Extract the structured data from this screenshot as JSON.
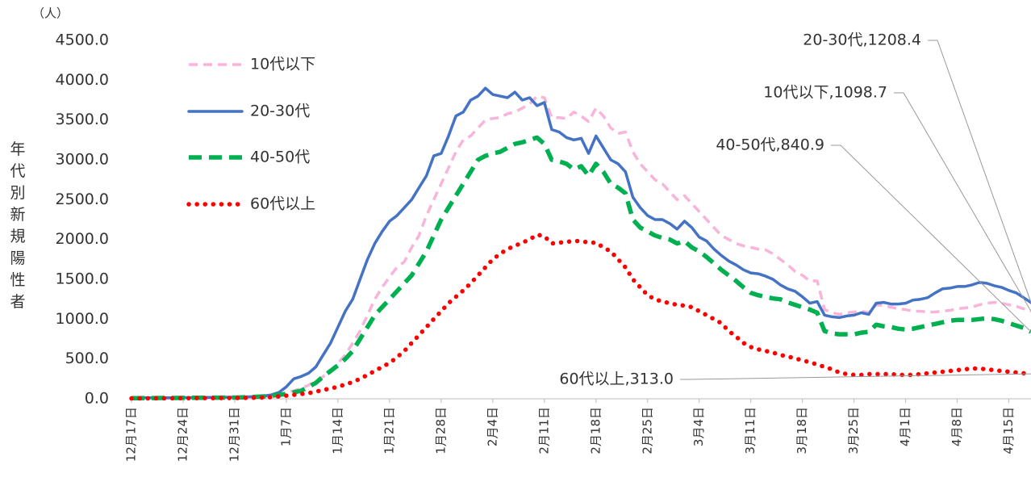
{
  "chart_data": {
    "type": "line",
    "y_unit": "（人）",
    "y_label": "年代別新規陽性者",
    "categories": [
      "12月17日",
      null,
      null,
      null,
      null,
      null,
      null,
      "12月24日",
      null,
      null,
      null,
      null,
      null,
      null,
      "12月31日",
      null,
      null,
      null,
      null,
      null,
      null,
      "1月7日",
      null,
      null,
      null,
      null,
      null,
      null,
      "1月14日",
      null,
      null,
      null,
      null,
      null,
      null,
      "1月21日",
      null,
      null,
      null,
      null,
      null,
      null,
      "1月28日",
      null,
      null,
      null,
      null,
      null,
      null,
      "2月4日",
      null,
      null,
      null,
      null,
      null,
      null,
      "2月11日",
      null,
      null,
      null,
      null,
      null,
      null,
      "2月18日",
      null,
      null,
      null,
      null,
      null,
      null,
      "2月25日",
      null,
      null,
      null,
      null,
      null,
      null,
      "3月4日",
      null,
      null,
      null,
      null,
      null,
      null,
      "3月11日",
      null,
      null,
      null,
      null,
      null,
      null,
      "3月18日",
      null,
      null,
      null,
      null,
      null,
      null,
      "3月25日",
      null,
      null,
      null,
      null,
      null,
      null,
      "4月1日",
      null,
      null,
      null,
      null,
      null,
      null,
      "4月8日",
      null,
      null,
      null,
      null,
      null,
      null,
      "4月15日",
      null,
      null,
      null
    ],
    "series": [
      {
        "name": "10代以下",
        "color": "#f8b4d9",
        "values": [
          5,
          5,
          6,
          6,
          7,
          7,
          8,
          8,
          9,
          9,
          10,
          10,
          10,
          12,
          12,
          14,
          16,
          20,
          25,
          35,
          50,
          80,
          100,
          130,
          170,
          220,
          280,
          350,
          450,
          550,
          700,
          850,
          1050,
          1250,
          1400,
          1530,
          1650,
          1720,
          1900,
          2050,
          2300,
          2500,
          2700,
          2900,
          3100,
          3250,
          3300,
          3400,
          3500,
          3520,
          3530,
          3580,
          3600,
          3650,
          3700,
          3800,
          3780,
          3530,
          3530,
          3520,
          3600,
          3550,
          3480,
          3650,
          3550,
          3400,
          3330,
          3350,
          3100,
          2950,
          2850,
          2750,
          2700,
          2600,
          2500,
          2550,
          2450,
          2350,
          2250,
          2150,
          2050,
          2000,
          1950,
          1920,
          1900,
          1880,
          1870,
          1820,
          1750,
          1680,
          1600,
          1550,
          1480,
          1480,
          1120,
          1080,
          1060,
          1080,
          1090,
          1100,
          1080,
          1180,
          1170,
          1150,
          1130,
          1120,
          1100,
          1100,
          1090,
          1090,
          1100,
          1110,
          1130,
          1140,
          1150,
          1180,
          1200,
          1210,
          1200,
          1180,
          1160,
          1130,
          1098.7
        ]
      },
      {
        "name": "20-30代",
        "color": "#4472c4",
        "values": [
          10,
          10,
          12,
          12,
          12,
          13,
          14,
          15,
          15,
          16,
          17,
          18,
          18,
          20,
          20,
          22,
          25,
          28,
          35,
          50,
          80,
          150,
          250,
          280,
          320,
          400,
          550,
          700,
          900,
          1100,
          1250,
          1500,
          1750,
          1950,
          2100,
          2230,
          2300,
          2400,
          2500,
          2650,
          2800,
          3050,
          3080,
          3300,
          3550,
          3600,
          3750,
          3800,
          3900,
          3820,
          3800,
          3780,
          3850,
          3750,
          3780,
          3680,
          3720,
          3380,
          3350,
          3280,
          3250,
          3270,
          3080,
          3300,
          3150,
          3000,
          2950,
          2850,
          2530,
          2400,
          2300,
          2250,
          2250,
          2200,
          2130,
          2230,
          2150,
          2030,
          1980,
          1880,
          1800,
          1730,
          1680,
          1620,
          1580,
          1570,
          1540,
          1500,
          1430,
          1380,
          1350,
          1280,
          1200,
          1220,
          1050,
          1030,
          1020,
          1040,
          1050,
          1080,
          1060,
          1200,
          1210,
          1190,
          1190,
          1200,
          1240,
          1250,
          1270,
          1330,
          1380,
          1390,
          1410,
          1410,
          1430,
          1460,
          1450,
          1420,
          1400,
          1360,
          1330,
          1270,
          1208.4
        ]
      },
      {
        "name": "40-50代",
        "color": "#00b050",
        "values": [
          8,
          8,
          9,
          9,
          10,
          10,
          10,
          11,
          12,
          12,
          13,
          14,
          14,
          15,
          15,
          17,
          20,
          25,
          30,
          40,
          50,
          60,
          80,
          100,
          150,
          200,
          280,
          350,
          420,
          500,
          600,
          750,
          900,
          1050,
          1150,
          1250,
          1350,
          1450,
          1550,
          1700,
          1850,
          2050,
          2250,
          2400,
          2550,
          2700,
          2850,
          3000,
          3050,
          3080,
          3100,
          3150,
          3200,
          3220,
          3250,
          3280,
          3200,
          3000,
          2980,
          2950,
          2880,
          2920,
          2800,
          2950,
          2850,
          2700,
          2650,
          2580,
          2250,
          2150,
          2100,
          2050,
          2020,
          2000,
          1950,
          1980,
          1900,
          1850,
          1780,
          1700,
          1620,
          1550,
          1480,
          1400,
          1330,
          1300,
          1280,
          1260,
          1250,
          1210,
          1180,
          1150,
          1120,
          1080,
          850,
          820,
          810,
          810,
          810,
          830,
          840,
          930,
          910,
          900,
          880,
          870,
          880,
          900,
          920,
          940,
          960,
          980,
          990,
          990,
          990,
          1000,
          1010,
          1000,
          980,
          950,
          920,
          890,
          840.9
        ]
      },
      {
        "name": "60代以上",
        "color": "#ff0000",
        "values": [
          5,
          5,
          5,
          6,
          6,
          6,
          7,
          7,
          7,
          8,
          8,
          8,
          9,
          9,
          10,
          10,
          12,
          14,
          16,
          20,
          30,
          40,
          50,
          60,
          70,
          90,
          110,
          130,
          150,
          180,
          210,
          250,
          300,
          350,
          400,
          450,
          520,
          600,
          700,
          800,
          900,
          1000,
          1100,
          1200,
          1280,
          1360,
          1450,
          1550,
          1650,
          1750,
          1820,
          1880,
          1920,
          1960,
          2000,
          2060,
          2040,
          1950,
          1960,
          1970,
          1980,
          1980,
          1960,
          1960,
          1900,
          1850,
          1750,
          1650,
          1500,
          1400,
          1300,
          1250,
          1220,
          1200,
          1180,
          1170,
          1150,
          1100,
          1050,
          1000,
          950,
          850,
          780,
          700,
          650,
          620,
          600,
          580,
          550,
          530,
          510,
          480,
          460,
          430,
          400,
          370,
          330,
          310,
          300,
          300,
          310,
          310,
          310,
          310,
          300,
          300,
          300,
          310,
          320,
          330,
          340,
          350,
          360,
          370,
          380,
          380,
          370,
          360,
          350,
          340,
          330,
          320,
          313
        ]
      }
    ],
    "annotations": [
      "10代以下,1098.7",
      "20-30代,1208.4",
      "40-50代,840.9",
      "60代以上,313.0"
    ],
    "ylim": [
      0,
      4500
    ],
    "yticks": [
      {
        "value": 0,
        "label": "0.0"
      },
      {
        "value": 500,
        "label": "500.0"
      },
      {
        "value": 1000,
        "label": "1000.0"
      },
      {
        "value": 1500,
        "label": "1500.0"
      },
      {
        "value": 2000,
        "label": "2000.0"
      },
      {
        "value": 2500,
        "label": "2500.0"
      },
      {
        "value": 3000,
        "label": "3000.0"
      },
      {
        "value": 3500,
        "label": "3500.0"
      },
      {
        "value": 4000,
        "label": "4000.0"
      },
      {
        "value": 4500,
        "label": "4500.0"
      }
    ],
    "grid": false,
    "legend": "upper left"
  }
}
